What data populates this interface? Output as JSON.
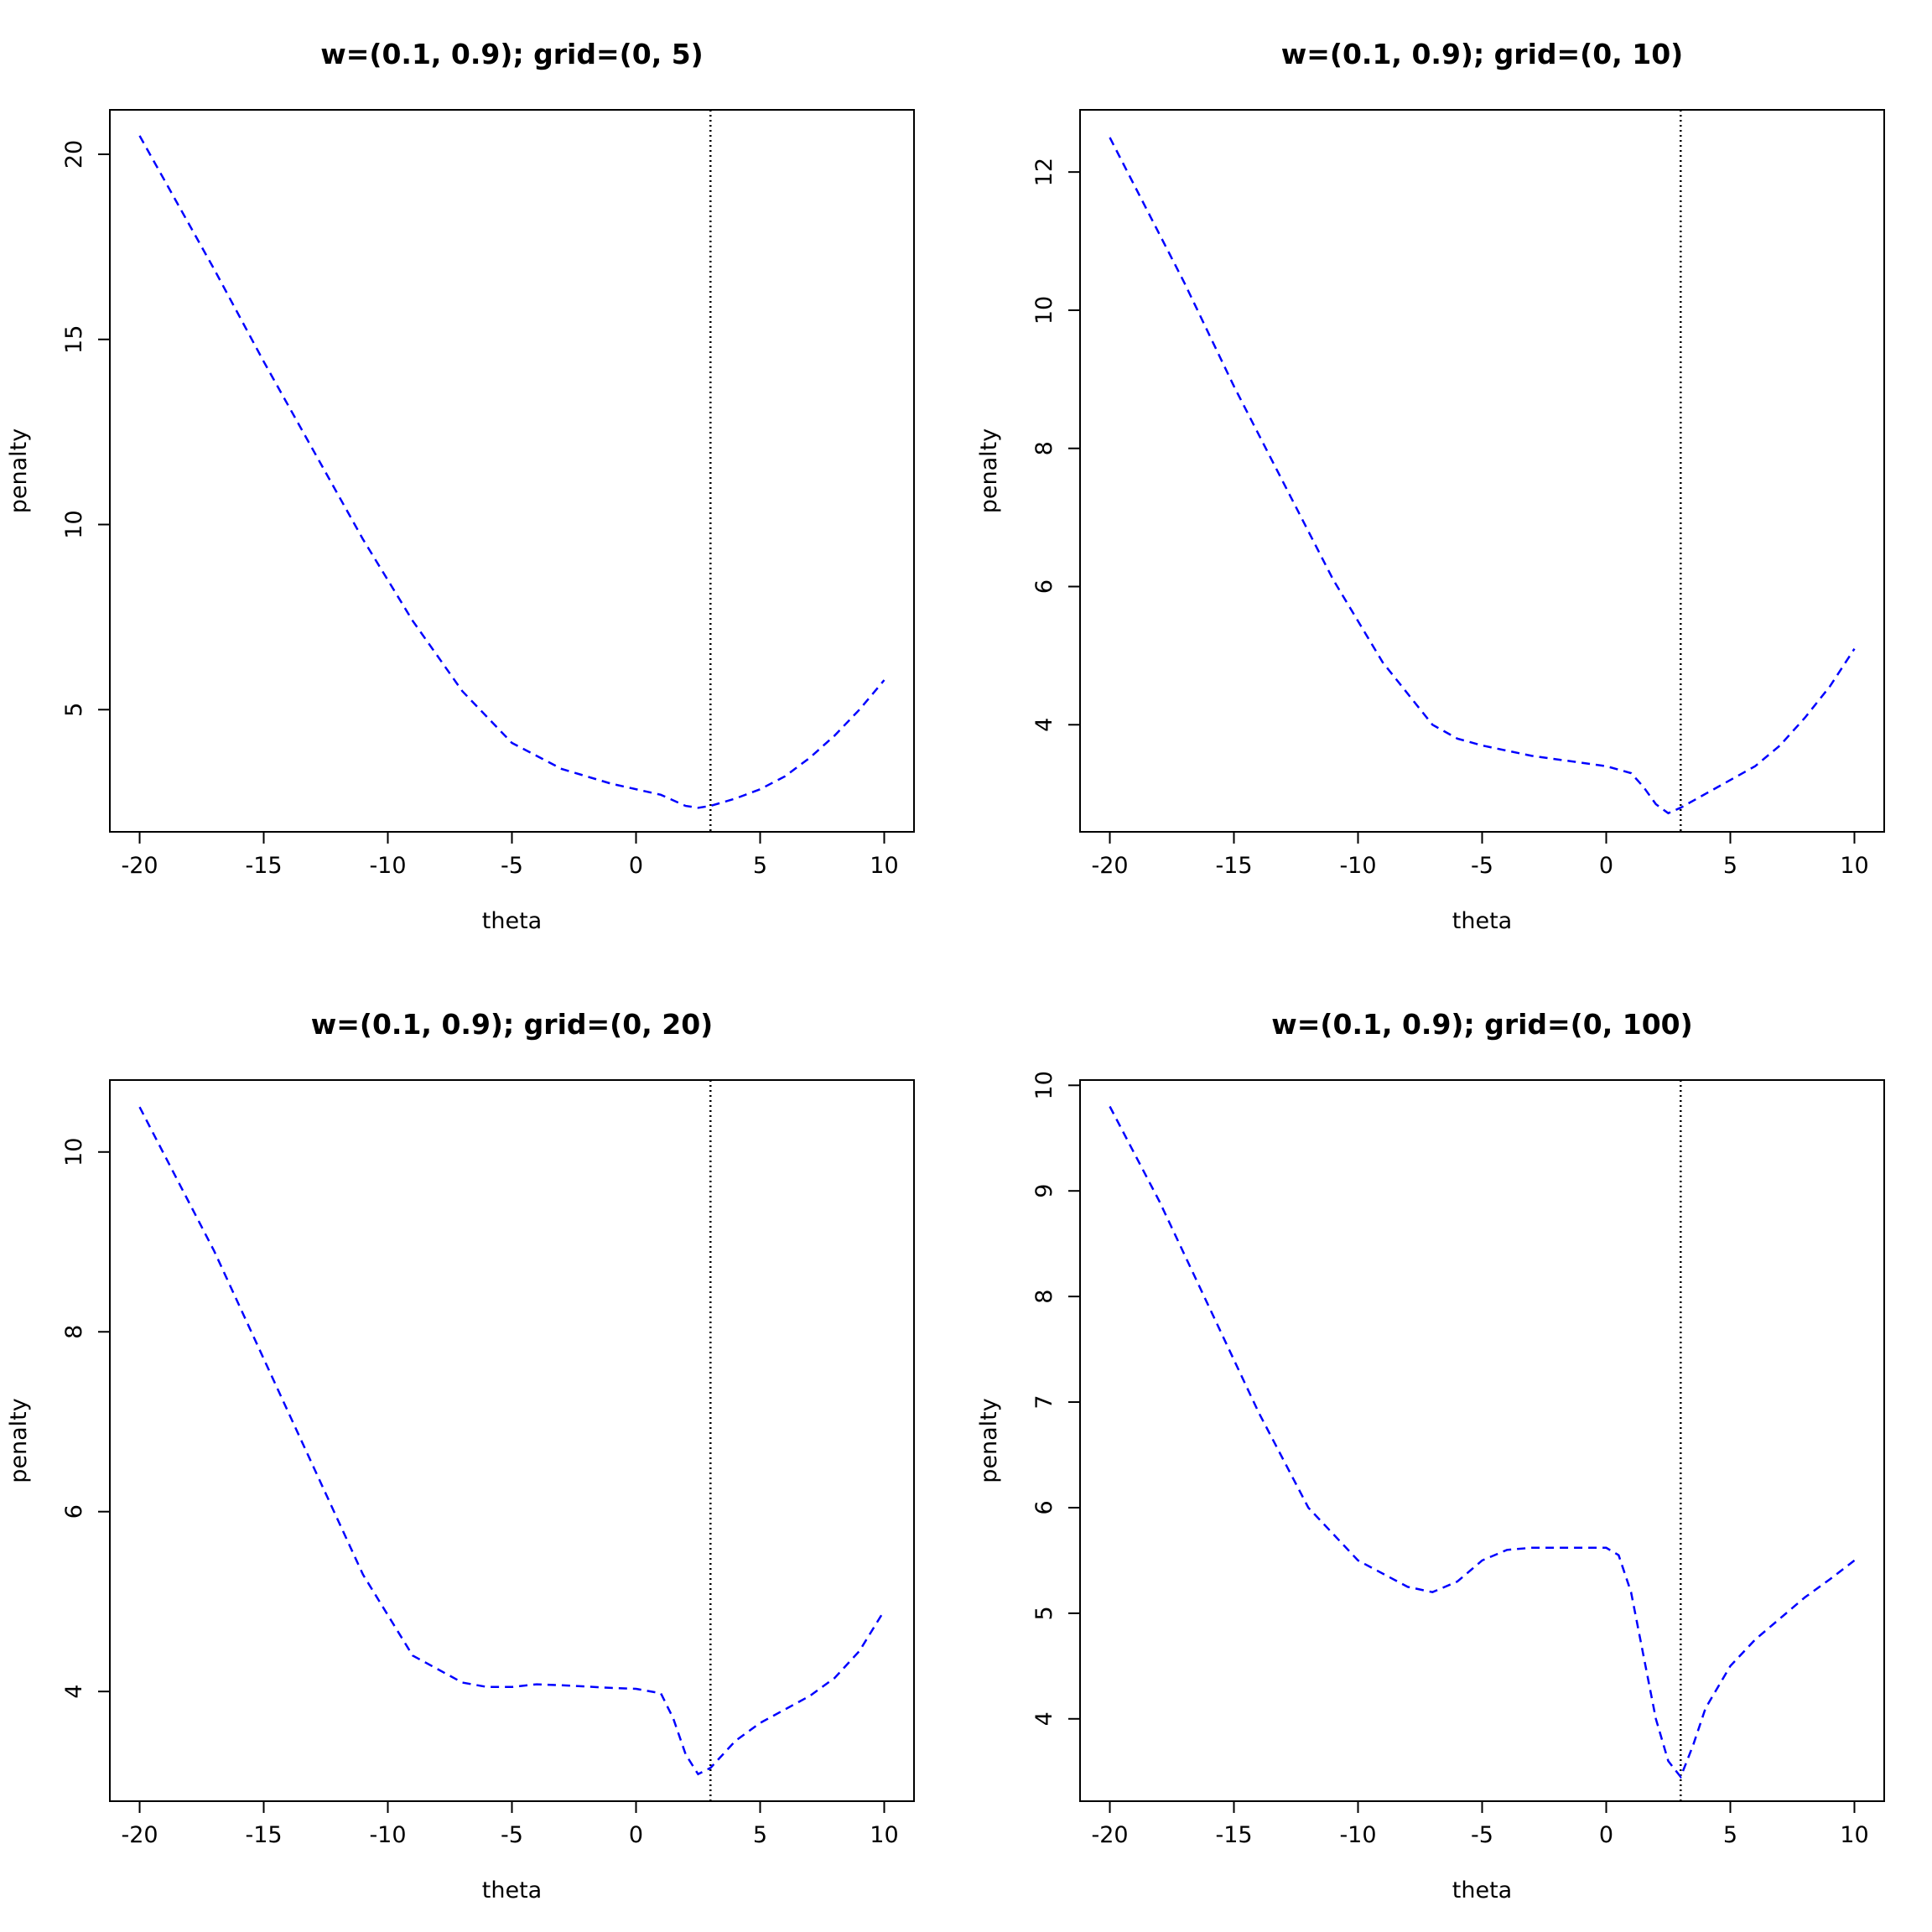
{
  "chart_data": [
    {
      "type": "line",
      "title": "w=(0.1, 0.9); grid=(0, 5)",
      "xlabel": "theta",
      "ylabel": "penalty",
      "xlim": [
        -21.2,
        11.2
      ],
      "ylim": [
        1.7,
        21.2
      ],
      "xticks": [
        -20,
        -15,
        -10,
        -5,
        0,
        5,
        10
      ],
      "yticks": [
        5,
        10,
        15,
        20
      ],
      "grid": false,
      "vline": 3,
      "series": [
        {
          "color": "#0000ff",
          "x": [
            -20,
            -17,
            -15,
            -13,
            -11,
            -9,
            -7,
            -5,
            -3,
            -1,
            1,
            2,
            2.5,
            3,
            4,
            5,
            6,
            7,
            8,
            9,
            10
          ],
          "y": [
            20.5,
            16.9,
            14.4,
            12.0,
            9.6,
            7.4,
            5.5,
            4.1,
            3.4,
            3.0,
            2.7,
            2.4,
            2.35,
            2.4,
            2.6,
            2.85,
            3.2,
            3.7,
            4.3,
            5.0,
            5.8
          ]
        }
      ]
    },
    {
      "type": "line",
      "title": "w=(0.1, 0.9); grid=(0, 10)",
      "xlabel": "theta",
      "ylabel": "penalty",
      "xlim": [
        -21.2,
        11.2
      ],
      "ylim": [
        2.45,
        12.9
      ],
      "xticks": [
        -20,
        -15,
        -10,
        -5,
        0,
        5,
        10
      ],
      "yticks": [
        4,
        6,
        8,
        10,
        12
      ],
      "grid": false,
      "vline": 3,
      "series": [
        {
          "color": "#0000ff",
          "x": [
            -20,
            -17,
            -15,
            -13,
            -11,
            -9,
            -7,
            -6,
            -5,
            -3,
            -1,
            0,
            1,
            1.5,
            2,
            2.5,
            3,
            4,
            5,
            6,
            7,
            8,
            9,
            10
          ],
          "y": [
            12.5,
            10.4,
            8.9,
            7.5,
            6.1,
            4.9,
            4.0,
            3.8,
            3.7,
            3.55,
            3.45,
            3.4,
            3.3,
            3.1,
            2.85,
            2.72,
            2.8,
            3.0,
            3.2,
            3.4,
            3.7,
            4.1,
            4.55,
            5.1
          ]
        }
      ]
    },
    {
      "type": "line",
      "title": "w=(0.1, 0.9); grid=(0, 20)",
      "xlabel": "theta",
      "ylabel": "penalty",
      "xlim": [
        -21.2,
        11.2
      ],
      "ylim": [
        2.78,
        10.8
      ],
      "xticks": [
        -20,
        -15,
        -10,
        -5,
        0,
        5,
        10
      ],
      "yticks": [
        4,
        6,
        8,
        10
      ],
      "grid": false,
      "vline": 3,
      "series": [
        {
          "color": "#0000ff",
          "x": [
            -20,
            -17,
            -15,
            -13,
            -11,
            -9,
            -7,
            -6,
            -5,
            -4,
            -3,
            -1,
            0,
            1,
            1.5,
            2,
            2.5,
            3,
            4,
            5,
            6,
            7,
            8,
            9,
            10
          ],
          "y": [
            10.5,
            8.9,
            7.7,
            6.5,
            5.3,
            4.4,
            4.1,
            4.05,
            4.05,
            4.08,
            4.07,
            4.04,
            4.03,
            3.98,
            3.7,
            3.3,
            3.08,
            3.15,
            3.45,
            3.65,
            3.8,
            3.95,
            4.15,
            4.45,
            4.9
          ]
        }
      ]
    },
    {
      "type": "line",
      "title": "w=(0.1, 0.9); grid=(0, 100)",
      "xlabel": "theta",
      "ylabel": "penalty",
      "xlim": [
        -21.2,
        11.2
      ],
      "ylim": [
        3.22,
        10.05
      ],
      "xticks": [
        -20,
        -15,
        -10,
        -5,
        0,
        5,
        10
      ],
      "yticks": [
        4,
        5,
        6,
        7,
        8,
        9,
        10
      ],
      "grid": false,
      "vline": 3,
      "series": [
        {
          "color": "#0000ff",
          "x": [
            -20,
            -18,
            -16,
            -14,
            -12,
            -10,
            -8,
            -7,
            -6,
            -5,
            -4,
            -3,
            -1,
            0,
            0.5,
            1,
            1.5,
            2,
            2.5,
            3,
            3.5,
            4,
            5,
            6,
            7,
            8,
            9,
            10
          ],
          "y": [
            9.8,
            8.9,
            7.9,
            6.9,
            6.0,
            5.5,
            5.25,
            5.2,
            5.3,
            5.5,
            5.6,
            5.62,
            5.62,
            5.62,
            5.55,
            5.2,
            4.6,
            4.0,
            3.6,
            3.45,
            3.75,
            4.1,
            4.5,
            4.75,
            4.95,
            5.15,
            5.32,
            5.5
          ]
        }
      ]
    }
  ]
}
